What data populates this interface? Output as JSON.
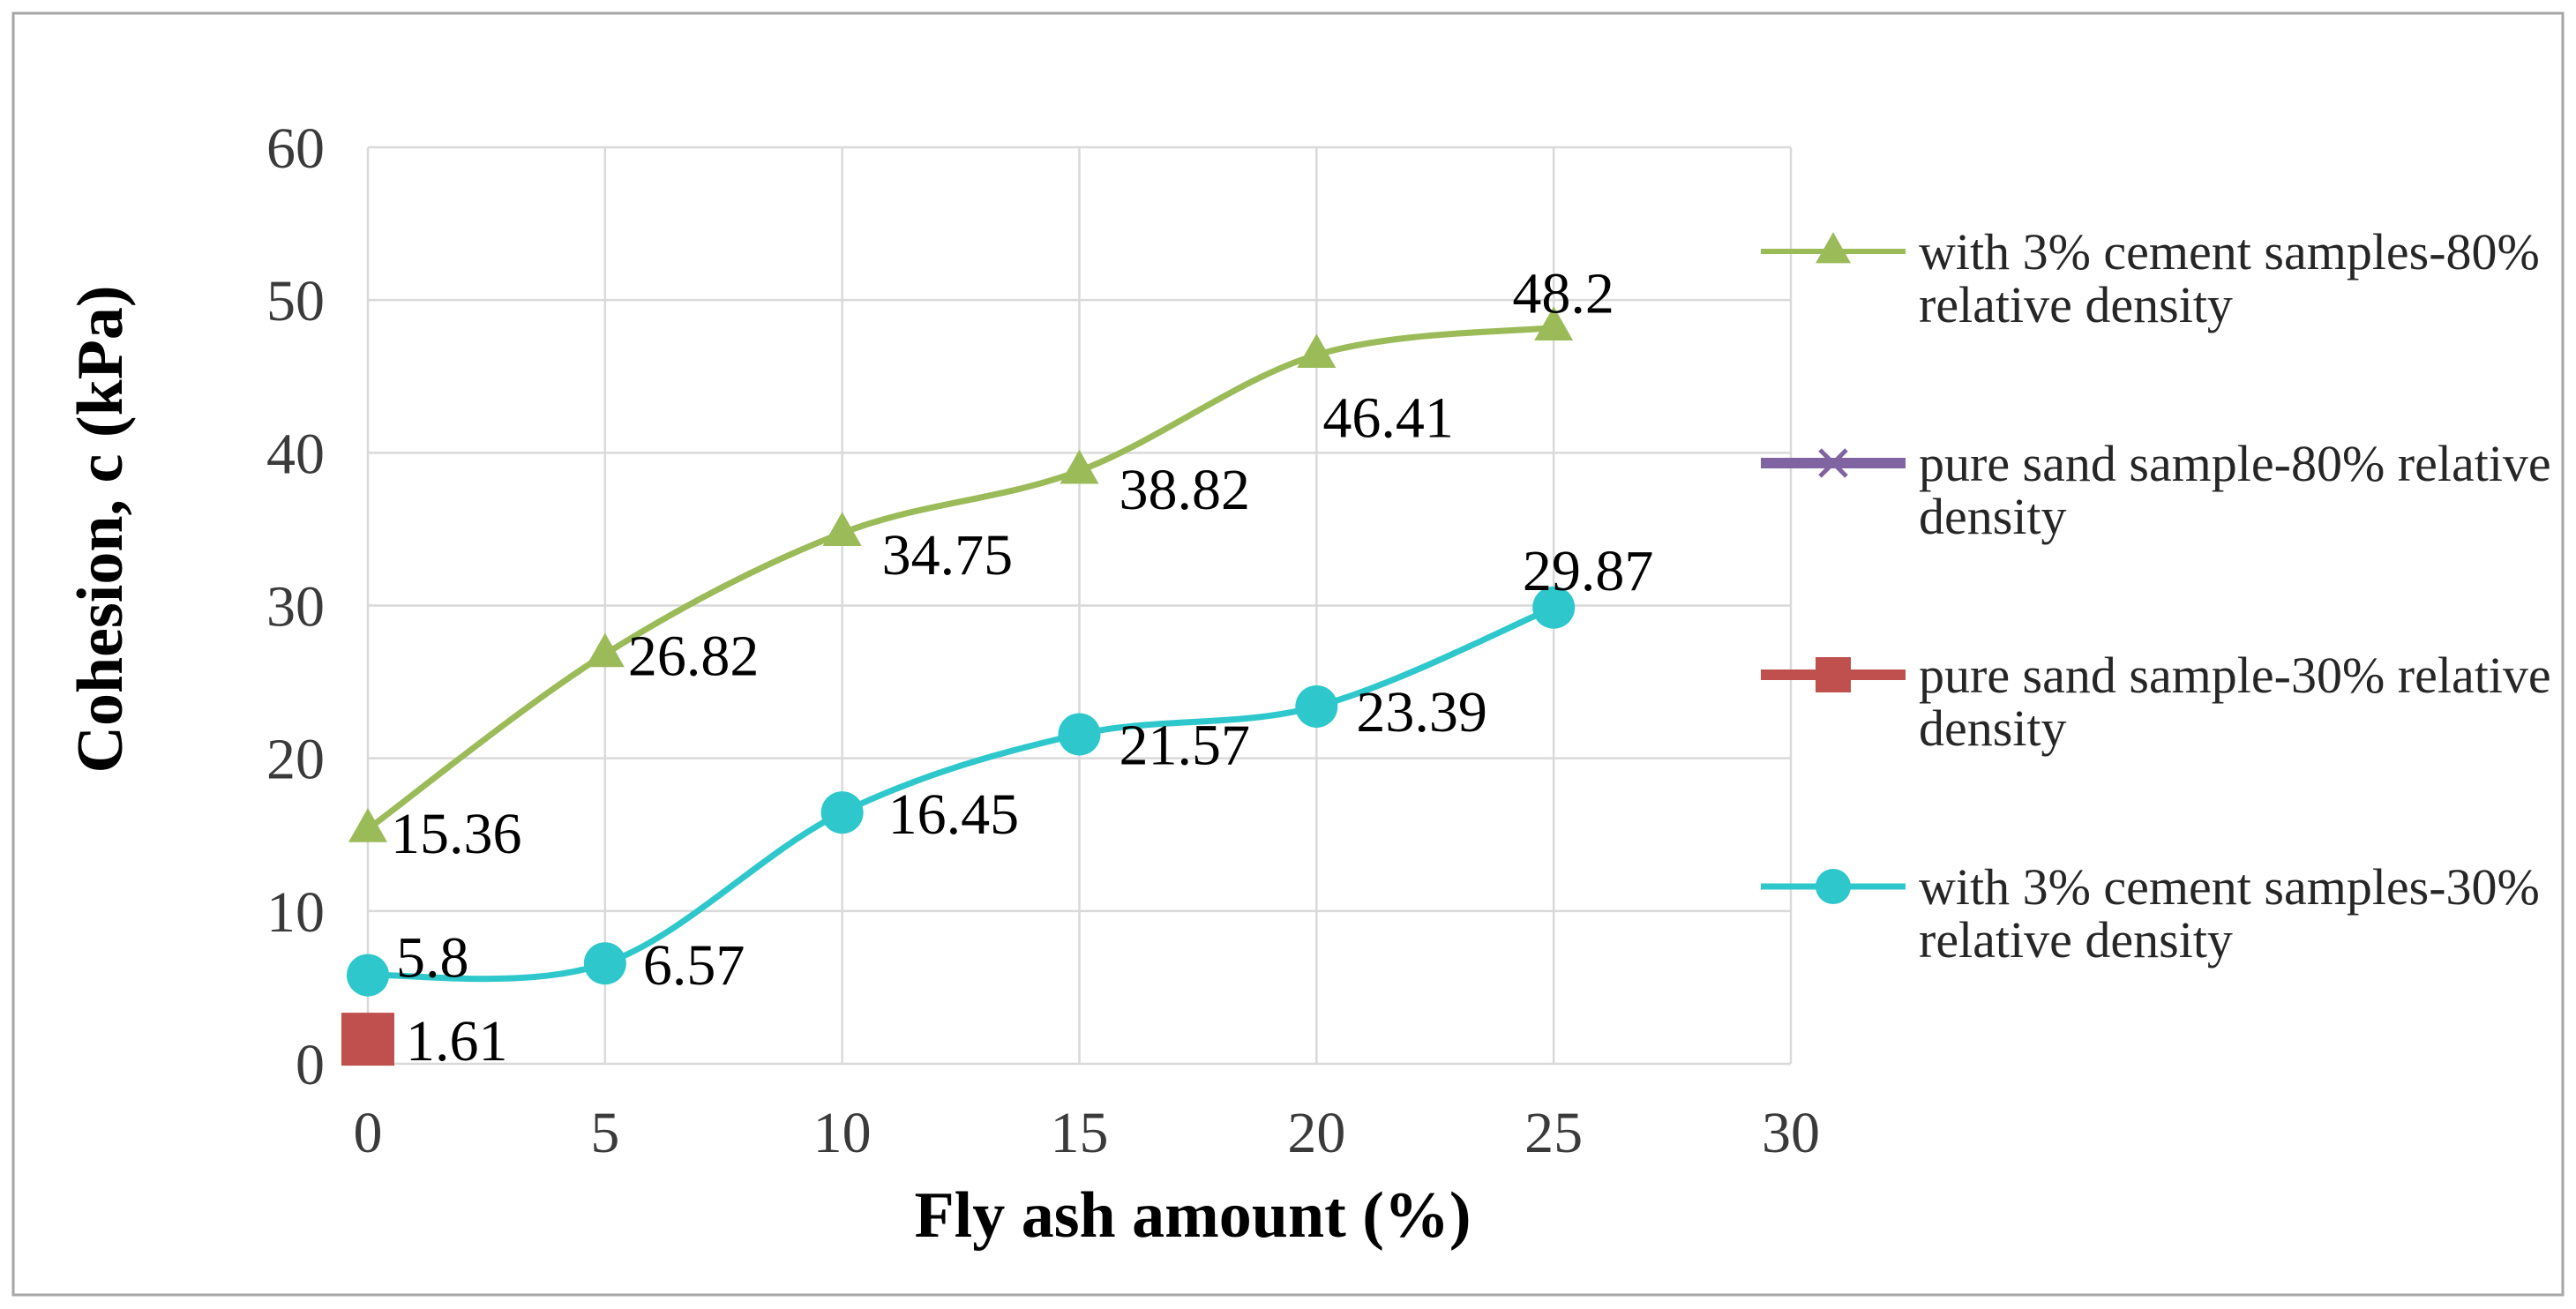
{
  "chart_data": {
    "type": "line",
    "xlabel": "Fly ash amount (%)",
    "ylabel": "Cohesion, c (kPa)",
    "xlim": [
      0,
      30
    ],
    "ylim": [
      0,
      60
    ],
    "x_ticks": [
      0,
      5,
      10,
      15,
      20,
      25,
      30
    ],
    "y_ticks": [
      0,
      10,
      20,
      30,
      40,
      50,
      60
    ],
    "grid": true,
    "legend_position": "right",
    "data_labels": true,
    "series": [
      {
        "legend": [
          "with 3% cement samples-80%",
          "relative density"
        ],
        "marker": "triangle",
        "color": "#9BBB59",
        "smooth": true,
        "x": [
          0,
          5,
          10,
          15,
          20,
          25
        ],
        "values": [
          15.36,
          26.82,
          34.75,
          38.82,
          46.41,
          48.2
        ]
      },
      {
        "legend": [
          "pure sand sample-80% relative",
          "density"
        ],
        "marker": "x",
        "color": "#8064A2",
        "smooth": true,
        "x": [],
        "values": []
      },
      {
        "legend": [
          "pure sand sample-30% relative",
          "density"
        ],
        "marker": "square",
        "color": "#C0504D",
        "smooth": true,
        "x": [
          0
        ],
        "values": [
          1.61
        ]
      },
      {
        "legend": [
          "with 3% cement samples-30%",
          "relative density"
        ],
        "marker": "circle",
        "color": "#2EC8CC",
        "smooth": true,
        "x": [
          0,
          5,
          10,
          15,
          20,
          25
        ],
        "values": [
          5.8,
          6.57,
          16.45,
          21.57,
          23.39,
          29.87
        ]
      }
    ]
  }
}
